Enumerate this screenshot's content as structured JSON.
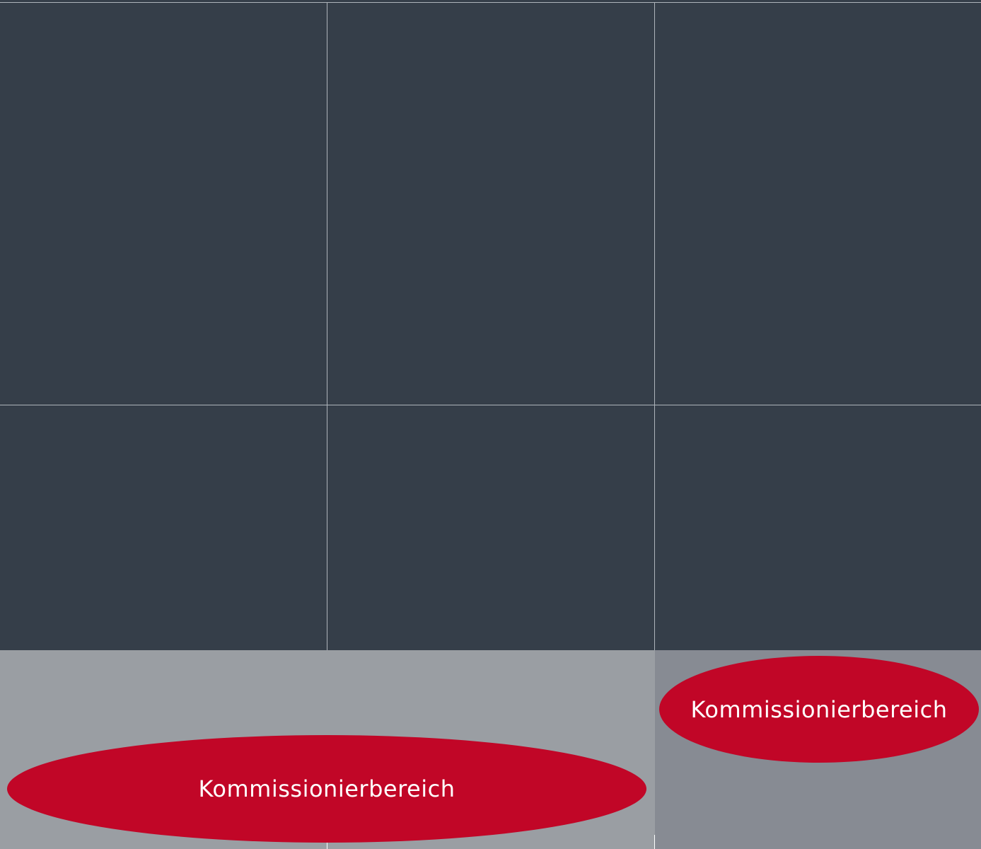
{
  "colors": {
    "background": "#353e49",
    "grid_line": "#aeb4bb",
    "area_light": "#9a9ea3",
    "area_mid": "#878b93",
    "accent": "#c10627",
    "label_text": "#ffffff"
  },
  "zones": {
    "left": {
      "label": "Kommissionierbereich"
    },
    "right": {
      "label": "Kommissionierbereich"
    }
  }
}
